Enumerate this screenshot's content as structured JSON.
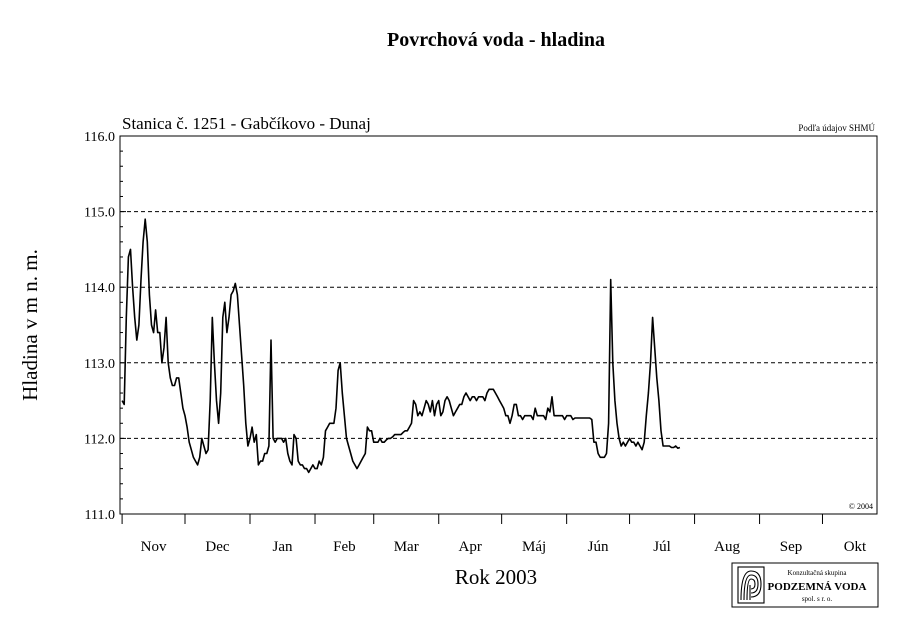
{
  "chart_data": {
    "type": "line",
    "title": "Povrchová voda - hladina",
    "subtitle": "Stanica č. 1251 - Gabčíkovo - Dunaj",
    "source_note": "Podľa údajov SHMÚ",
    "copyright": "© 2004",
    "xlabel": "Rok 2003",
    "ylabel": "Hladina v m n. m.",
    "ylim": [
      111.0,
      116.0
    ],
    "y_ticks": [
      "111.0",
      "112.0",
      "113.0",
      "114.0",
      "115.0",
      "116.0"
    ],
    "grid": "dashed horizontal at 112.0, 113.0, 114.0, 115.0",
    "x_unit": "day of hydrological year starting 1 Oct 2002",
    "xlim": [
      0,
      365
    ],
    "months": [
      {
        "label": "Nov",
        "start": 31,
        "end": 61
      },
      {
        "label": "Dec",
        "start": 61,
        "end": 92
      },
      {
        "label": "Jan",
        "start": 92,
        "end": 123
      },
      {
        "label": "Feb",
        "start": 123,
        "end": 151
      },
      {
        "label": "Mar",
        "start": 151,
        "end": 182
      },
      {
        "label": "Apr",
        "start": 182,
        "end": 212
      },
      {
        "label": "Máj",
        "start": 212,
        "end": 243
      },
      {
        "label": "Jún",
        "start": 243,
        "end": 273
      },
      {
        "label": "Júl",
        "start": 273,
        "end": 304
      },
      {
        "label": "Aug",
        "start": 304,
        "end": 335
      },
      {
        "label": "Sep",
        "start": 335,
        "end": 365
      },
      {
        "label": "Okt",
        "start": 365,
        "end": 396
      }
    ],
    "series": [
      {
        "name": "Gabčíkovo - Dunaj",
        "points": [
          [
            1,
            112.5
          ],
          [
            2,
            112.45
          ],
          [
            3,
            113.6
          ],
          [
            4,
            114.4
          ],
          [
            5,
            114.5
          ],
          [
            6,
            114.0
          ],
          [
            7,
            113.6
          ],
          [
            8,
            113.3
          ],
          [
            9,
            113.5
          ],
          [
            10,
            114.1
          ],
          [
            11,
            114.6
          ],
          [
            12,
            114.9
          ],
          [
            13,
            114.6
          ],
          [
            14,
            113.9
          ],
          [
            15,
            113.5
          ],
          [
            16,
            113.4
          ],
          [
            17,
            113.7
          ],
          [
            18,
            113.4
          ],
          [
            19,
            113.4
          ],
          [
            20,
            113.0
          ],
          [
            21,
            113.2
          ],
          [
            22,
            113.6
          ],
          [
            23,
            113.0
          ],
          [
            24,
            112.8
          ],
          [
            25,
            112.7
          ],
          [
            26,
            112.7
          ],
          [
            27,
            112.8
          ],
          [
            28,
            112.8
          ],
          [
            29,
            112.6
          ],
          [
            30,
            112.4
          ],
          [
            31,
            112.3
          ],
          [
            32,
            112.15
          ],
          [
            33,
            111.95
          ],
          [
            34,
            111.85
          ],
          [
            35,
            111.75
          ],
          [
            36,
            111.7
          ],
          [
            37,
            111.65
          ],
          [
            38,
            111.75
          ],
          [
            39,
            112.0
          ],
          [
            40,
            111.9
          ],
          [
            41,
            111.8
          ],
          [
            42,
            111.85
          ],
          [
            43,
            112.5
          ],
          [
            44,
            113.6
          ],
          [
            45,
            113.0
          ],
          [
            46,
            112.5
          ],
          [
            47,
            112.2
          ],
          [
            48,
            112.6
          ],
          [
            49,
            113.6
          ],
          [
            50,
            113.8
          ],
          [
            51,
            113.4
          ],
          [
            52,
            113.6
          ],
          [
            53,
            113.9
          ],
          [
            54,
            113.95
          ],
          [
            55,
            114.05
          ],
          [
            56,
            113.9
          ],
          [
            57,
            113.5
          ],
          [
            58,
            113.1
          ],
          [
            59,
            112.7
          ],
          [
            60,
            112.2
          ],
          [
            61,
            111.9
          ],
          [
            62,
            112.0
          ],
          [
            63,
            112.15
          ],
          [
            64,
            111.95
          ],
          [
            65,
            112.05
          ],
          [
            66,
            111.65
          ],
          [
            67,
            111.7
          ],
          [
            68,
            111.7
          ],
          [
            69,
            111.8
          ],
          [
            70,
            111.8
          ],
          [
            71,
            111.9
          ],
          [
            72,
            113.3
          ],
          [
            73,
            112.0
          ],
          [
            74,
            111.95
          ],
          [
            75,
            112.0
          ],
          [
            76,
            112.0
          ],
          [
            77,
            112.0
          ],
          [
            78,
            111.95
          ],
          [
            79,
            112.0
          ],
          [
            80,
            111.8
          ],
          [
            81,
            111.7
          ],
          [
            82,
            111.65
          ],
          [
            83,
            112.05
          ],
          [
            84,
            112.0
          ],
          [
            85,
            111.7
          ],
          [
            86,
            111.65
          ],
          [
            87,
            111.65
          ],
          [
            88,
            111.6
          ],
          [
            89,
            111.6
          ],
          [
            90,
            111.55
          ],
          [
            91,
            111.6
          ],
          [
            92,
            111.65
          ],
          [
            93,
            111.6
          ],
          [
            94,
            111.6
          ],
          [
            95,
            111.7
          ],
          [
            96,
            111.65
          ],
          [
            97,
            111.75
          ],
          [
            98,
            112.1
          ],
          [
            99,
            112.15
          ],
          [
            100,
            112.2
          ],
          [
            101,
            112.2
          ],
          [
            102,
            112.2
          ],
          [
            103,
            112.4
          ],
          [
            104,
            112.9
          ],
          [
            105,
            113.0
          ],
          [
            106,
            112.6
          ],
          [
            107,
            112.3
          ],
          [
            108,
            112.0
          ],
          [
            109,
            111.9
          ],
          [
            110,
            111.8
          ],
          [
            111,
            111.7
          ],
          [
            112,
            111.65
          ],
          [
            113,
            111.6
          ],
          [
            114,
            111.65
          ],
          [
            115,
            111.7
          ],
          [
            116,
            111.75
          ],
          [
            117,
            111.8
          ],
          [
            118,
            112.15
          ],
          [
            119,
            112.1
          ],
          [
            120,
            112.1
          ],
          [
            121,
            111.95
          ],
          [
            122,
            111.95
          ],
          [
            123,
            111.95
          ],
          [
            124,
            112.0
          ],
          [
            125,
            111.95
          ],
          [
            126,
            111.95
          ],
          [
            127,
            111.98
          ],
          [
            128,
            112.0
          ],
          [
            129,
            112.0
          ],
          [
            130,
            112.02
          ],
          [
            131,
            112.05
          ],
          [
            132,
            112.05
          ],
          [
            133,
            112.05
          ],
          [
            134,
            112.05
          ],
          [
            135,
            112.08
          ],
          [
            136,
            112.1
          ],
          [
            137,
            112.1
          ],
          [
            138,
            112.15
          ],
          [
            139,
            112.2
          ],
          [
            140,
            112.5
          ],
          [
            141,
            112.45
          ],
          [
            142,
            112.3
          ],
          [
            143,
            112.35
          ],
          [
            144,
            112.3
          ],
          [
            145,
            112.4
          ],
          [
            146,
            112.5
          ],
          [
            147,
            112.45
          ],
          [
            148,
            112.35
          ],
          [
            149,
            112.5
          ],
          [
            150,
            112.3
          ],
          [
            151,
            112.45
          ],
          [
            152,
            112.5
          ],
          [
            153,
            112.3
          ],
          [
            154,
            112.35
          ],
          [
            155,
            112.5
          ],
          [
            156,
            112.55
          ],
          [
            157,
            112.5
          ],
          [
            158,
            112.4
          ],
          [
            159,
            112.3
          ],
          [
            160,
            112.35
          ],
          [
            161,
            112.4
          ],
          [
            162,
            112.45
          ],
          [
            163,
            112.45
          ],
          [
            164,
            112.55
          ],
          [
            165,
            112.6
          ],
          [
            166,
            112.55
          ],
          [
            167,
            112.5
          ],
          [
            168,
            112.55
          ],
          [
            169,
            112.55
          ],
          [
            170,
            112.5
          ],
          [
            171,
            112.55
          ],
          [
            172,
            112.55
          ],
          [
            173,
            112.55
          ],
          [
            174,
            112.5
          ],
          [
            175,
            112.6
          ],
          [
            176,
            112.65
          ],
          [
            177,
            112.65
          ],
          [
            178,
            112.65
          ],
          [
            179,
            112.6
          ],
          [
            180,
            112.55
          ],
          [
            181,
            112.5
          ],
          [
            182,
            112.45
          ],
          [
            183,
            112.4
          ],
          [
            184,
            112.3
          ],
          [
            185,
            112.3
          ],
          [
            186,
            112.2
          ],
          [
            187,
            112.3
          ],
          [
            188,
            112.45
          ],
          [
            189,
            112.45
          ],
          [
            190,
            112.3
          ],
          [
            191,
            112.3
          ],
          [
            192,
            112.25
          ],
          [
            193,
            112.3
          ],
          [
            194,
            112.3
          ],
          [
            195,
            112.3
          ],
          [
            196,
            112.3
          ],
          [
            197,
            112.25
          ],
          [
            198,
            112.4
          ],
          [
            199,
            112.3
          ],
          [
            200,
            112.3
          ],
          [
            201,
            112.3
          ],
          [
            202,
            112.3
          ],
          [
            203,
            112.25
          ],
          [
            204,
            112.4
          ],
          [
            205,
            112.35
          ],
          [
            206,
            112.55
          ],
          [
            207,
            112.3
          ],
          [
            208,
            112.3
          ],
          [
            209,
            112.3
          ],
          [
            210,
            112.3
          ],
          [
            211,
            112.3
          ],
          [
            212,
            112.25
          ],
          [
            213,
            112.3
          ],
          [
            214,
            112.3
          ],
          [
            215,
            112.3
          ],
          [
            216,
            112.25
          ],
          [
            217,
            112.27
          ],
          [
            218,
            112.27
          ],
          [
            219,
            112.27
          ],
          [
            220,
            112.27
          ],
          [
            221,
            112.27
          ],
          [
            222,
            112.27
          ],
          [
            223,
            112.27
          ],
          [
            224,
            112.27
          ],
          [
            225,
            112.25
          ],
          [
            226,
            111.95
          ],
          [
            227,
            111.95
          ],
          [
            228,
            111.8
          ],
          [
            229,
            111.75
          ],
          [
            230,
            111.75
          ],
          [
            231,
            111.75
          ],
          [
            232,
            111.8
          ],
          [
            233,
            112.2
          ],
          [
            234,
            114.1
          ],
          [
            235,
            113.0
          ],
          [
            236,
            112.5
          ],
          [
            237,
            112.2
          ],
          [
            238,
            112.0
          ],
          [
            239,
            111.9
          ],
          [
            240,
            111.95
          ],
          [
            241,
            111.9
          ],
          [
            242,
            111.95
          ],
          [
            243,
            112.0
          ],
          [
            244,
            111.95
          ],
          [
            245,
            111.95
          ],
          [
            246,
            111.9
          ],
          [
            247,
            111.95
          ],
          [
            248,
            111.9
          ],
          [
            249,
            111.85
          ],
          [
            250,
            111.95
          ],
          [
            251,
            112.3
          ],
          [
            252,
            112.6
          ],
          [
            253,
            113.0
          ],
          [
            254,
            113.6
          ],
          [
            255,
            113.2
          ],
          [
            256,
            112.8
          ],
          [
            257,
            112.5
          ],
          [
            258,
            112.1
          ],
          [
            259,
            111.9
          ],
          [
            260,
            111.9
          ],
          [
            261,
            111.9
          ],
          [
            262,
            111.9
          ],
          [
            263,
            111.88
          ],
          [
            264,
            111.88
          ],
          [
            265,
            111.9
          ],
          [
            266,
            111.87
          ],
          [
            267,
            111.88
          ]
        ]
      }
    ]
  },
  "logo": {
    "line1": "Konzultačná skupina",
    "line2": "PODZEMNÁ VODA",
    "line3": "spol. s r. o."
  }
}
